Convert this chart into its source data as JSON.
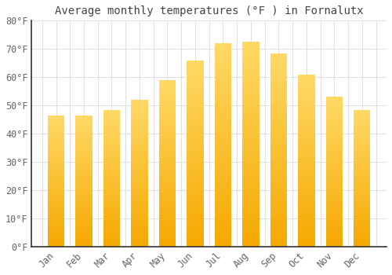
{
  "title": "Average monthly temperatures (°F ) in Fornalutx",
  "months": [
    "Jan",
    "Feb",
    "Mar",
    "Apr",
    "May",
    "Jun",
    "Jul",
    "Aug",
    "Sep",
    "Oct",
    "Nov",
    "Dec"
  ],
  "values": [
    46.5,
    46.5,
    48.5,
    52.0,
    59.0,
    66.0,
    72.0,
    72.5,
    68.5,
    61.0,
    53.0,
    48.5
  ],
  "bar_color_bottom": "#F5A800",
  "bar_color_top": "#FFD966",
  "background_color": "#FFFFFF",
  "grid_color": "#E0E0E0",
  "text_color": "#666666",
  "title_color": "#444444",
  "ylim": [
    0,
    80
  ],
  "yticks": [
    0,
    10,
    20,
    30,
    40,
    50,
    60,
    70,
    80
  ],
  "ytick_labels": [
    "0°F",
    "10°F",
    "20°F",
    "30°F",
    "40°F",
    "50°F",
    "60°F",
    "70°F",
    "80°F"
  ],
  "title_fontsize": 10,
  "tick_fontsize": 8.5,
  "bar_width": 0.6
}
